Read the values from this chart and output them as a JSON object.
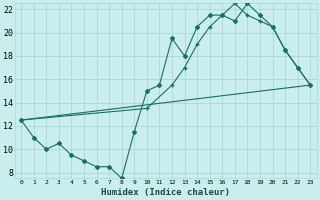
{
  "xlabel": "Humidex (Indice chaleur)",
  "bg_color": "#caeeed",
  "grid_color": "#aad8d8",
  "line_color": "#1a6e62",
  "xlim": [
    -0.5,
    23.5
  ],
  "ylim": [
    7.5,
    22.5
  ],
  "xticks": [
    0,
    1,
    2,
    3,
    4,
    5,
    6,
    7,
    8,
    9,
    10,
    11,
    12,
    13,
    14,
    15,
    16,
    17,
    18,
    19,
    20,
    21,
    22,
    23
  ],
  "yticks": [
    8,
    10,
    12,
    14,
    16,
    18,
    20,
    22
  ],
  "line1_x": [
    0,
    1,
    2,
    3,
    4,
    5,
    6,
    7,
    8,
    9,
    10,
    11,
    12,
    13,
    14,
    15,
    16,
    17,
    18,
    19,
    20,
    21,
    22,
    23
  ],
  "line1_y": [
    12.5,
    11.0,
    10.0,
    10.5,
    9.5,
    9.0,
    8.5,
    8.5,
    7.5,
    11.5,
    15.0,
    15.5,
    19.5,
    18.0,
    20.5,
    21.5,
    21.5,
    21.0,
    22.5,
    21.5,
    20.5,
    18.5,
    17.0,
    15.5
  ],
  "line2_x": [
    0,
    23
  ],
  "line2_y": [
    12.5,
    15.5
  ],
  "line3_x": [
    0,
    10,
    12,
    13,
    14,
    15,
    16,
    17,
    18,
    19,
    20,
    21,
    22,
    23
  ],
  "line3_y": [
    12.5,
    13.5,
    15.5,
    17.0,
    19.0,
    20.5,
    21.5,
    22.5,
    21.5,
    21.0,
    20.5,
    18.5,
    17.0,
    15.5
  ]
}
